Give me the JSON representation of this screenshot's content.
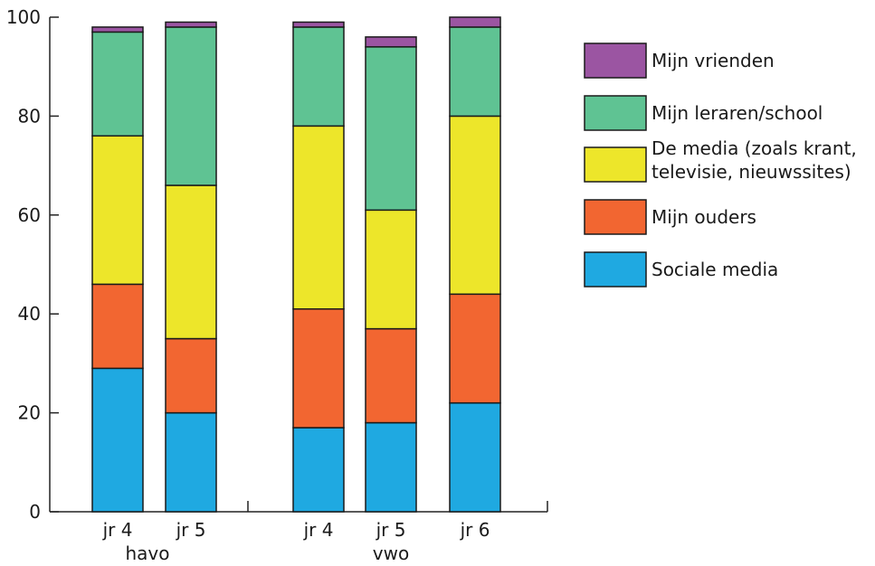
{
  "chart_data": {
    "type": "bar",
    "stacked": true,
    "ylim": [
      0,
      100
    ],
    "yticks": [
      0,
      20,
      40,
      60,
      80,
      100
    ],
    "groups": [
      {
        "label": "havo",
        "categories": [
          "jr 4",
          "jr 5"
        ]
      },
      {
        "label": "vwo",
        "categories": [
          "jr 4",
          "jr 5",
          "jr 6"
        ]
      }
    ],
    "categories": [
      "jr 4",
      "jr 5",
      "jr 4",
      "jr 5",
      "jr 6"
    ],
    "series": [
      {
        "name": "Sociale media",
        "color": "#1fa9e1",
        "values": [
          29,
          20,
          17,
          18,
          22
        ]
      },
      {
        "name": "Mijn ouders",
        "color": "#f26631",
        "values": [
          17,
          15,
          24,
          19,
          22
        ]
      },
      {
        "name": "De media (zoals krant, televisie, nieuwssites)",
        "color": "#ede62a",
        "values": [
          30,
          31,
          37,
          24,
          36
        ]
      },
      {
        "name": "Mijn leraren/school",
        "color": "#5fc393",
        "values": [
          21,
          32,
          20,
          33,
          18
        ]
      },
      {
        "name": "Mijn vrienden",
        "color": "#9b55a2",
        "values": [
          1,
          1,
          1,
          2,
          2
        ]
      }
    ],
    "legend": {
      "placement": "right",
      "items": [
        {
          "lines": [
            "Mijn vrienden"
          ],
          "color": "#9b55a2"
        },
        {
          "lines": [
            "Mijn leraren/school"
          ],
          "color": "#5fc393"
        },
        {
          "lines": [
            "De media (zoals krant,",
            "televisie, nieuwssites)"
          ],
          "color": "#ede62a"
        },
        {
          "lines": [
            "Mijn ouders"
          ],
          "color": "#f26631"
        },
        {
          "lines": [
            "Sociale media"
          ],
          "color": "#1fa9e1"
        }
      ]
    }
  }
}
